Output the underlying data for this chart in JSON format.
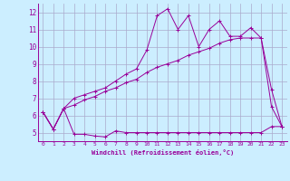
{
  "xlabel": "Windchill (Refroidissement éolien,°C)",
  "bg_color": "#cceeff",
  "line_color": "#990099",
  "grid_color": "#aaaacc",
  "xlim": [
    -0.5,
    23.5
  ],
  "ylim": [
    4.5,
    12.5
  ],
  "xticks": [
    0,
    1,
    2,
    3,
    4,
    5,
    6,
    7,
    8,
    9,
    10,
    11,
    12,
    13,
    14,
    15,
    16,
    17,
    18,
    19,
    20,
    21,
    22,
    23
  ],
  "yticks": [
    5,
    6,
    7,
    8,
    9,
    10,
    11,
    12
  ],
  "line1_x": [
    0,
    1,
    2,
    3,
    4,
    5,
    6,
    7,
    8,
    9,
    10,
    11,
    12,
    13,
    14,
    15,
    16,
    17,
    18,
    19,
    20,
    21,
    22,
    23
  ],
  "line1_y": [
    6.2,
    5.2,
    6.4,
    4.9,
    4.9,
    4.8,
    4.75,
    5.1,
    5.0,
    5.0,
    5.0,
    5.0,
    5.0,
    5.0,
    5.0,
    5.0,
    5.0,
    5.0,
    5.0,
    5.0,
    5.0,
    5.0,
    5.35,
    5.35
  ],
  "line2_x": [
    0,
    1,
    2,
    3,
    4,
    5,
    6,
    7,
    8,
    9,
    10,
    11,
    12,
    13,
    14,
    15,
    16,
    17,
    18,
    19,
    20,
    21,
    22,
    23
  ],
  "line2_y": [
    6.2,
    5.2,
    6.4,
    7.0,
    7.2,
    7.4,
    7.6,
    8.0,
    8.4,
    8.7,
    9.8,
    11.8,
    12.2,
    11.0,
    11.8,
    10.0,
    11.0,
    11.5,
    10.6,
    10.6,
    11.1,
    10.5,
    7.5,
    5.35
  ],
  "line3_x": [
    0,
    1,
    2,
    3,
    4,
    5,
    6,
    7,
    8,
    9,
    10,
    11,
    12,
    13,
    14,
    15,
    16,
    17,
    18,
    19,
    20,
    21,
    22,
    23
  ],
  "line3_y": [
    6.2,
    5.2,
    6.4,
    6.6,
    6.9,
    7.1,
    7.4,
    7.6,
    7.9,
    8.1,
    8.5,
    8.8,
    9.0,
    9.2,
    9.5,
    9.7,
    9.9,
    10.2,
    10.4,
    10.5,
    10.5,
    10.5,
    6.5,
    5.35
  ]
}
